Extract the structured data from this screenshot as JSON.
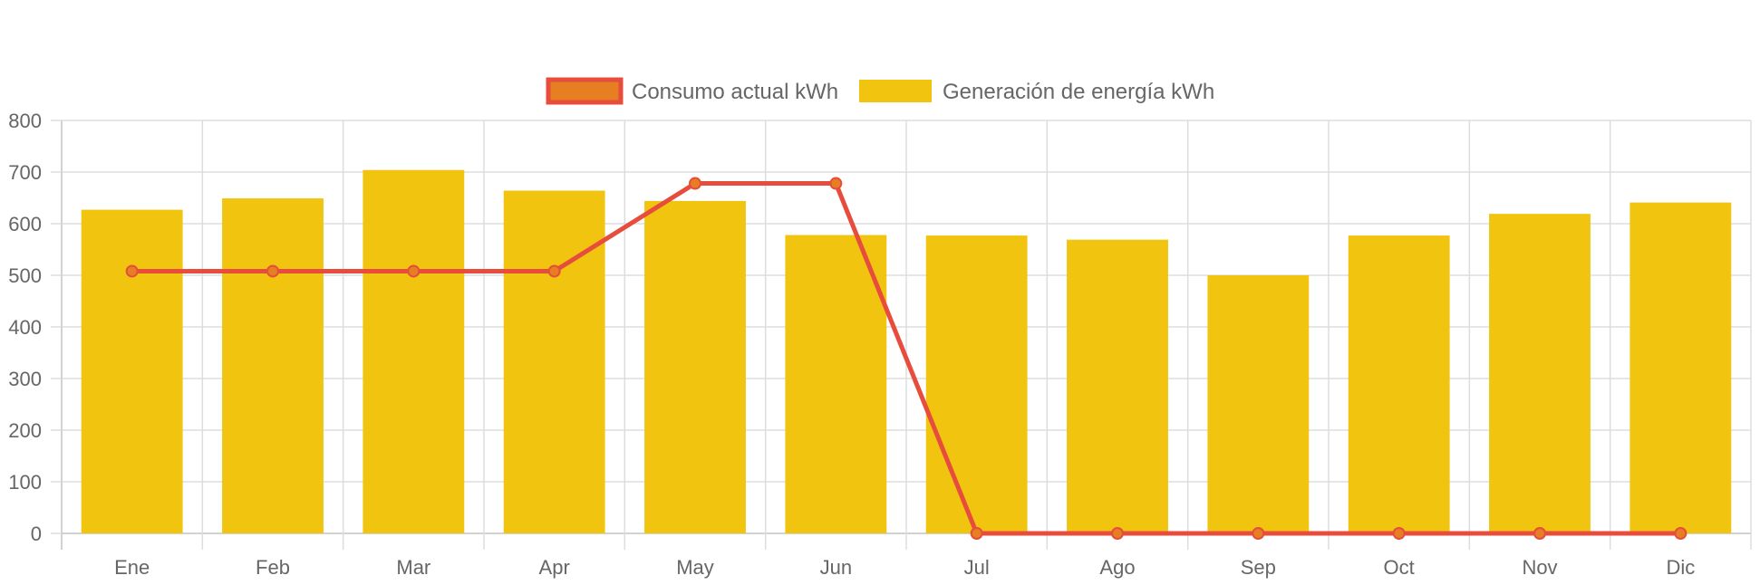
{
  "chart_data": {
    "type": "bar",
    "categories": [
      "Ene",
      "Feb",
      "Mar",
      "Apr",
      "May",
      "Jun",
      "Jul",
      "Ago",
      "Sep",
      "Oct",
      "Nov",
      "Dic"
    ],
    "series": [
      {
        "name": "Consumo actual kWh",
        "type": "line",
        "color": "#e74c3c",
        "point_color": "#e67e22",
        "values": [
          508,
          508,
          508,
          508,
          678,
          678,
          0,
          0,
          0,
          0,
          0,
          0
        ]
      },
      {
        "name": "Generación de energía kWh",
        "type": "bar",
        "color": "#f1c40f",
        "values": [
          627,
          649,
          704,
          664,
          644,
          578,
          577,
          569,
          500,
          577,
          619,
          641
        ]
      }
    ],
    "ylim": [
      0,
      800
    ],
    "yticks": [
      0,
      100,
      200,
      300,
      400,
      500,
      600,
      700,
      800
    ],
    "grid": true,
    "legend_position": "top-center"
  }
}
